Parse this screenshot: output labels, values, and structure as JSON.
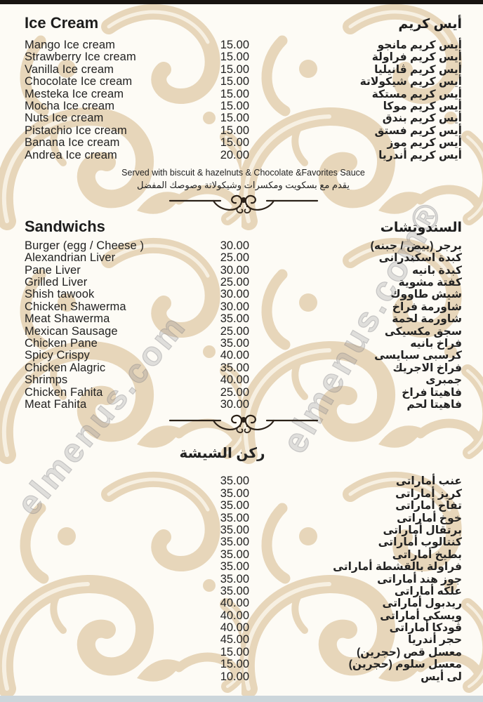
{
  "page": {
    "watermark_right": "elmenus.com®",
    "watermark_left": "elmenus.com",
    "colors": {
      "pattern_beige": "#e7d6ba",
      "text": "#222222",
      "top_bar": "#181411",
      "bottom_bar": "#ccd6db",
      "background": "#fdfbf5",
      "ornament": "#2b2118"
    }
  },
  "sections": [
    {
      "id": "ice-cream",
      "title_en": "Ice Cream",
      "title_ar": "أيس كريم",
      "note_en": "Served with biscuit & hazelnuts & Chocolate &Favorites Sauce",
      "note_ar": "يقدم مع بسكويت ومكسرات وشيكولاتة وصوصك المفضل",
      "items": [
        {
          "en": "Mango Ice cream",
          "price": "15.00",
          "ar": "أيس كريم مانجو"
        },
        {
          "en": "Strawberry Ice cream",
          "price": "15.00",
          "ar": "أيس كريم فراولة"
        },
        {
          "en": "Vanilla Ice cream",
          "price": "15.00",
          "ar": "أيس كريم ڤانيليا"
        },
        {
          "en": "Chocolate Ice cream",
          "price": "15.00",
          "ar": "أيس كريم شيكولاتة"
        },
        {
          "en": "Mesteka Ice cream",
          "price": "15.00",
          "ar": "أيس كريم مستكة"
        },
        {
          "en": "Mocha Ice cream",
          "price": "15.00",
          "ar": "أيس كريم موكا"
        },
        {
          "en": "Nuts Ice cream",
          "price": "15.00",
          "ar": "أيس كريم بندق"
        },
        {
          "en": "Pistachio Ice cream",
          "price": "15.00",
          "ar": "أيس كريم فستق"
        },
        {
          "en": "Banana Ice cream",
          "price": "15.00",
          "ar": "أيس كريم موز"
        },
        {
          "en": "Andrea Ice cream",
          "price": "20.00",
          "ar": "أيس كريم أندريا"
        }
      ]
    },
    {
      "id": "sandwichs",
      "title_en": "Sandwichs",
      "title_ar": "السندوتشات",
      "items": [
        {
          "en": "Burger (egg / Cheese )",
          "price": "30.00",
          "ar": "برجر (بيض / جبنه)"
        },
        {
          "en": "Alexandrian Liver",
          "price": "25.00",
          "ar": "كبدة اسكندرانى"
        },
        {
          "en": "Pane Liver",
          "price": "30.00",
          "ar": "كبدة بانيه"
        },
        {
          "en": "Grilled Liver",
          "price": "25.00",
          "ar": "كفتة مشوية"
        },
        {
          "en": "Shish tawook",
          "price": "30.00",
          "ar": "شيش طاووك"
        },
        {
          "en": "Chicken Shawerma",
          "price": "30.00",
          "ar": "شاورمة فراخ"
        },
        {
          "en": "Meat Shawerma",
          "price": "35.00",
          "ar": "شاورمة لحمة"
        },
        {
          "en": "Mexican Sausage",
          "price": "25.00",
          "ar": "سجق مكسيكى"
        },
        {
          "en": "Chicken Pane",
          "price": "35.00",
          "ar": "فراخ بانيه"
        },
        {
          "en": "Spicy Crispy",
          "price": "40.00",
          "ar": "كرسبى سبايسى"
        },
        {
          "en": "Chicken Alagric",
          "price": "35.00",
          "ar": "فراخ الاجريك"
        },
        {
          "en": "Shrimps",
          "price": "40.00",
          "ar": "جمبرى"
        },
        {
          "en": "Chicken Fahita",
          "price": "25.00",
          "ar": "فاهيتا فراخ"
        },
        {
          "en": "Meat Fahita",
          "price": "30.00",
          "ar": "فاهيتا لحم"
        }
      ]
    },
    {
      "id": "shisha",
      "title_ar": "ركن الشيشة",
      "items": [
        {
          "en": "",
          "price": "35.00",
          "ar": "عنب أماراتى"
        },
        {
          "en": "",
          "price": "35.00",
          "ar": "كريز أماراتى"
        },
        {
          "en": "",
          "price": "35.00",
          "ar": "تفاح أماراتى"
        },
        {
          "en": "",
          "price": "35.00",
          "ar": "خوخ أماراتى"
        },
        {
          "en": "",
          "price": "35.00",
          "ar": "برتقال أماراتى"
        },
        {
          "en": "",
          "price": "35.00",
          "ar": "كنتالوب أماراتى"
        },
        {
          "en": "",
          "price": "35.00",
          "ar": "بطيخ أماراتى"
        },
        {
          "en": "",
          "price": "35.00",
          "ar": "فراولة بالقشطة أماراتى"
        },
        {
          "en": "",
          "price": "35.00",
          "ar": "جوز هند أماراتى"
        },
        {
          "en": "",
          "price": "35.00",
          "ar": "علكه أماراتى"
        },
        {
          "en": "",
          "price": "40.00",
          "ar": "ريدبول أماراتى"
        },
        {
          "en": "",
          "price": "40.00",
          "ar": "ويسكى أماراتى"
        },
        {
          "en": "",
          "price": "40.00",
          "ar": "ڤودكا أماراتى"
        },
        {
          "en": "",
          "price": "45.00",
          "ar": "حجر أندريا"
        },
        {
          "en": "",
          "price": "15.00",
          "ar": "معسل قص (حجرين)"
        },
        {
          "en": "",
          "price": "15.00",
          "ar": "معسل سلوم (حجرين)"
        },
        {
          "en": "",
          "price": "10.00",
          "ar": "لى أيس"
        }
      ]
    }
  ]
}
